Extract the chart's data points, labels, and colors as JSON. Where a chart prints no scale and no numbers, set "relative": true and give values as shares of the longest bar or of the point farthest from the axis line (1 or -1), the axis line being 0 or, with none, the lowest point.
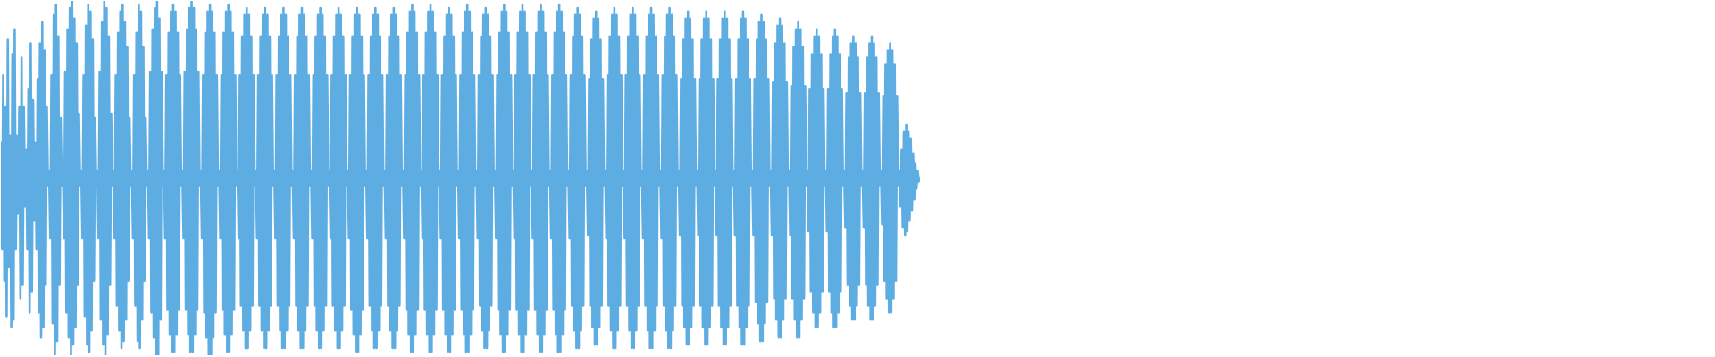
{
  "chart_data": {
    "type": "line",
    "relative": true,
    "categories": [
      null,
      null,
      null,
      null,
      null,
      null,
      null,
      null,
      null,
      null,
      null,
      null,
      null,
      null,
      null,
      null,
      null,
      null,
      null,
      null,
      null,
      null,
      null,
      null,
      null,
      null,
      null,
      null,
      null,
      null,
      null,
      null,
      null,
      null,
      null,
      null,
      null,
      null,
      null,
      null,
      null,
      null,
      null,
      null,
      null,
      null,
      null,
      null,
      null,
      null,
      null,
      null,
      null,
      null,
      null,
      null,
      null,
      null,
      null,
      null,
      null,
      null,
      null,
      null,
      null,
      null,
      null,
      null,
      null,
      null,
      null,
      null,
      null,
      null,
      null,
      null,
      null,
      null,
      null,
      null,
      null,
      null,
      null,
      null,
      null,
      null,
      null,
      null,
      null,
      null,
      null,
      null,
      null,
      null,
      null,
      null,
      null,
      null,
      null,
      null,
      null,
      null,
      null,
      null,
      null,
      null,
      null,
      null,
      null,
      null,
      null,
      null,
      null,
      null,
      null,
      null,
      null,
      null,
      null,
      null,
      null,
      null,
      null,
      null,
      null,
      null,
      null,
      null,
      null,
      null,
      null,
      null,
      null,
      null,
      null,
      null,
      null,
      null,
      null,
      null,
      null,
      null,
      null,
      null,
      null,
      null,
      null,
      null,
      null,
      null,
      null,
      null,
      null,
      null,
      null,
      null,
      null,
      null,
      null,
      null,
      null,
      null,
      null,
      null,
      null,
      null,
      null,
      null,
      null,
      null,
      null,
      null,
      null,
      null,
      null,
      null,
      null,
      null,
      null,
      null,
      null,
      null,
      null,
      null,
      null,
      null,
      null,
      null,
      null,
      null,
      null,
      null,
      null,
      null,
      null,
      null,
      null,
      null,
      null,
      null,
      null,
      null,
      null,
      null,
      null,
      null,
      null,
      null,
      null,
      null,
      null,
      null,
      null,
      null,
      null,
      null,
      null,
      null,
      null,
      null,
      null,
      null,
      null,
      null,
      null,
      null,
      null,
      null,
      null,
      null,
      null,
      null,
      null,
      null,
      null,
      null,
      null,
      null,
      null,
      null,
      null,
      null,
      null,
      null,
      null,
      null,
      null,
      null,
      null,
      null,
      null,
      null,
      null,
      null,
      null,
      null,
      null,
      null,
      null,
      null,
      null,
      null,
      null,
      null,
      null,
      null,
      null,
      null,
      null,
      null,
      null,
      null,
      null,
      null,
      null,
      null,
      null,
      null,
      null,
      null,
      null,
      null,
      null,
      null,
      null,
      null,
      null,
      null,
      null,
      null,
      null,
      null,
      null,
      null,
      null,
      null,
      null,
      null,
      null,
      null,
      null,
      null,
      null,
      null,
      null,
      null,
      null,
      null,
      null,
      null,
      null,
      null,
      null,
      null,
      null,
      null,
      null,
      null,
      null,
      null,
      null,
      null,
      null,
      null,
      null,
      null,
      null,
      null,
      null,
      null,
      null,
      null,
      null,
      null,
      null,
      null,
      null,
      null,
      null,
      null,
      null,
      null,
      null,
      null,
      null,
      null,
      null,
      null,
      null,
      null,
      null,
      null,
      null,
      null,
      null,
      null,
      null,
      null,
      null,
      null,
      null,
      null,
      null,
      null,
      null,
      null,
      null,
      null,
      null,
      null,
      null,
      null,
      null,
      null,
      null,
      null,
      null,
      null,
      null,
      null,
      null,
      null,
      null,
      null,
      null,
      null,
      null,
      null,
      null,
      null,
      null,
      null,
      null,
      null,
      null,
      null,
      null,
      null,
      null,
      null,
      null,
      null,
      null,
      null,
      null,
      null,
      null,
      null,
      null,
      null,
      null,
      null,
      null,
      null,
      null,
      null,
      null,
      null,
      null,
      null,
      null,
      null,
      null,
      null,
      null,
      null,
      null,
      null,
      null,
      null,
      null,
      null,
      null,
      null,
      null,
      null,
      null,
      null,
      null,
      null,
      null,
      null,
      null,
      null,
      null,
      null,
      null,
      null,
      null,
      null,
      null,
      null,
      null,
      null,
      null,
      null,
      null,
      null,
      null,
      null,
      null,
      null,
      null,
      null,
      null,
      null,
      null,
      null,
      null,
      null,
      null,
      null,
      null,
      null,
      null,
      null,
      null,
      null,
      null,
      null,
      null,
      null,
      null,
      null,
      null,
      null,
      null,
      null,
      null,
      null,
      null,
      null,
      null,
      null,
      null,
      null,
      null,
      null,
      null,
      null,
      null,
      null,
      null,
      null,
      null,
      null,
      null,
      null,
      null,
      null,
      null,
      null,
      null,
      null,
      null,
      null,
      null,
      null,
      null,
      null,
      null,
      null,
      null,
      null,
      null,
      null,
      null,
      null,
      null,
      null,
      null,
      null,
      null,
      null,
      null,
      null,
      null,
      null,
      null,
      null,
      null,
      null,
      null,
      null,
      null,
      null,
      null,
      null,
      null,
      null,
      null,
      null,
      null,
      null,
      null,
      null,
      null,
      null,
      null,
      null,
      null,
      null,
      null,
      null,
      null,
      null,
      null,
      null,
      null,
      null,
      null,
      null,
      null,
      null,
      null,
      null,
      null,
      null,
      null,
      null,
      null,
      null,
      null,
      null,
      null,
      null,
      null,
      null,
      null,
      null,
      null,
      null,
      null,
      null,
      null,
      null,
      null,
      null,
      null,
      null,
      null,
      null,
      null,
      null,
      null,
      null,
      null,
      null,
      null,
      null,
      null,
      null,
      null,
      null,
      null,
      null,
      null,
      null,
      null,
      null,
      null,
      null,
      null,
      null,
      null,
      null,
      null,
      null,
      null,
      null,
      null,
      null,
      null,
      null,
      null,
      null,
      null,
      null,
      null,
      null,
      null,
      null,
      null,
      null,
      null,
      null,
      null,
      null,
      null,
      null,
      null,
      null,
      null,
      null,
      null,
      null,
      null,
      null,
      null,
      null,
      null,
      null,
      null,
      null,
      null,
      null,
      null,
      null,
      null,
      null,
      null,
      null,
      null,
      null,
      null,
      null,
      null,
      null,
      null,
      null,
      null,
      null,
      null,
      null,
      null,
      null,
      null,
      null,
      null,
      null,
      null,
      null,
      null,
      null,
      null,
      null,
      null,
      null,
      null,
      null,
      null,
      null,
      null,
      null,
      null,
      null,
      null,
      null,
      null,
      null,
      null,
      null,
      null,
      null,
      null,
      null,
      null,
      null,
      null,
      null,
      null,
      null,
      null,
      null,
      null,
      null,
      null,
      null,
      null,
      null,
      null,
      null,
      null,
      null,
      null,
      null,
      null,
      null,
      null,
      null,
      null,
      null,
      null,
      null,
      null,
      null,
      null,
      null,
      null,
      null,
      null,
      null,
      null,
      null,
      null,
      null,
      null,
      null,
      null,
      null,
      null,
      null,
      null,
      null,
      null,
      null,
      null,
      null,
      null,
      null,
      null,
      null,
      null,
      null,
      null,
      null,
      null,
      null,
      null,
      null,
      null,
      null,
      null,
      null,
      null,
      null,
      null,
      null,
      null,
      null,
      null,
      null,
      null,
      null,
      null,
      null,
      null,
      null,
      null,
      null,
      null
    ],
    "series": [
      {
        "color": "#5dade2",
        "values": [
          0.6,
          0.3,
          0.79,
          0.21,
          0.7,
          0.11,
          0.89,
          0.25,
          0.62,
          0.08,
          0.85,
          0.1,
          0.92,
          0.3,
          0.62,
          0.4,
          0.7,
          0.16,
          0.84,
          0.2,
          0.7,
          0.42,
          0.58,
          0.3,
          0.75,
          0.12,
          0.88,
          0.18,
          0.72,
          0.38,
          0.6,
          0.3,
          0.78,
          0.12,
          0.88,
          0.05,
          0.94,
          0.08,
          0.86,
          0.2,
          0.7,
          0.48,
          0.52,
          0.33,
          0.79,
          0.09,
          0.96,
          0.0,
          0.99,
          0.04,
          0.9,
          0.2,
          0.67,
          0.48,
          0.52,
          0.33,
          0.8,
          0.12,
          0.92,
          0.05,
          0.98,
          0.0,
          1.0,
          0.03,
          0.95,
          0.08,
          0.88,
          0.2,
          0.68,
          0.48,
          0.52,
          0.33,
          0.79,
          0.11,
          0.93,
          0.03,
          0.99,
          0.01,
          0.97,
          0.07,
          0.89,
          0.21,
          0.67,
          0.48,
          0.52,
          0.33,
          0.8,
          0.1,
          0.94,
          0.03,
          1.0,
          0.0,
          0.98,
          0.06,
          0.9,
          0.2,
          0.68,
          0.48,
          0.52,
          0.33,
          0.79,
          0.14,
          0.91,
          0.07,
          0.97,
          0.02,
          0.99,
          0.04,
          0.94,
          0.1,
          0.87,
          0.21,
          0.67,
          0.48,
          0.52,
          0.33,
          0.79,
          0.14,
          0.91,
          0.04,
          0.99,
          0.02,
          0.97,
          0.1,
          0.87,
          0.21,
          0.67,
          0.48,
          0.52,
          0.33,
          0.8,
          0.12,
          0.92,
          0.05,
          0.98,
          0.0,
          1.0,
          0.0,
          0.95,
          0.1,
          0.8,
          0.48,
          0.52,
          0.33,
          0.79,
          0.13,
          0.91,
          0.06,
          0.97,
          0.01,
          0.99,
          0.01,
          0.97,
          0.06,
          0.91,
          0.13,
          0.79,
          0.48,
          0.52,
          0.33,
          0.8,
          0.13,
          0.92,
          0.06,
          0.98,
          0.01,
          1.0,
          0.01,
          0.98,
          0.06,
          0.92,
          0.13,
          0.8,
          0.48,
          0.52,
          0.33,
          0.79,
          0.12,
          0.91,
          0.05,
          0.97,
          0.0,
          0.99,
          0.0,
          0.97,
          0.05,
          0.91,
          0.12,
          0.79,
          0.48,
          0.52,
          0.33,
          0.79,
          0.13,
          0.91,
          0.06,
          0.97,
          0.01,
          0.99,
          0.01,
          0.97,
          0.06,
          0.91,
          0.13,
          0.79,
          0.48,
          0.52,
          0.33,
          0.79,
          0.14,
          0.9,
          0.07,
          0.96,
          0.02,
          0.98,
          0.02,
          0.96,
          0.07,
          0.9,
          0.14,
          0.79,
          0.48,
          0.52,
          0.33,
          0.79,
          0.14,
          0.9,
          0.07,
          0.96,
          0.02,
          0.98,
          0.02,
          0.96,
          0.07,
          0.9,
          0.14,
          0.79,
          0.48,
          0.52,
          0.33,
          0.79,
          0.14,
          0.9,
          0.07,
          0.96,
          0.02,
          0.98,
          0.02,
          0.96,
          0.07,
          0.9,
          0.14,
          0.79,
          0.48,
          0.52,
          0.33,
          0.79,
          0.14,
          0.9,
          0.07,
          0.96,
          0.02,
          0.98,
          0.02,
          0.96,
          0.07,
          0.9,
          0.14,
          0.79,
          0.48,
          0.52,
          0.33,
          0.79,
          0.14,
          0.9,
          0.07,
          0.96,
          0.02,
          0.98,
          0.02,
          0.96,
          0.07,
          0.9,
          0.14,
          0.79,
          0.48,
          0.52,
          0.33,
          0.79,
          0.14,
          0.9,
          0.07,
          0.96,
          0.02,
          0.98,
          0.02,
          0.96,
          0.07,
          0.9,
          0.14,
          0.79,
          0.48,
          0.52,
          0.33,
          0.79,
          0.13,
          0.9,
          0.06,
          0.96,
          0.01,
          0.98,
          0.01,
          0.96,
          0.06,
          0.9,
          0.13,
          0.79,
          0.48,
          0.52,
          0.33,
          0.79,
          0.14,
          0.9,
          0.07,
          0.96,
          0.02,
          0.98,
          0.02,
          0.96,
          0.07,
          0.9,
          0.14,
          0.79,
          0.48,
          0.52,
          0.33,
          0.79,
          0.14,
          0.9,
          0.07,
          0.96,
          0.02,
          0.98,
          0.02,
          0.96,
          0.07,
          0.9,
          0.14,
          0.79,
          0.48,
          0.52,
          0.33,
          0.79,
          0.13,
          0.91,
          0.06,
          0.97,
          0.01,
          0.99,
          0.01,
          0.97,
          0.06,
          0.91,
          0.13,
          0.79,
          0.48,
          0.52,
          0.33,
          0.79,
          0.13,
          0.91,
          0.06,
          0.97,
          0.01,
          0.99,
          0.01,
          0.97,
          0.06,
          0.91,
          0.13,
          0.79,
          0.48,
          0.52,
          0.33,
          0.79,
          0.13,
          0.9,
          0.06,
          0.96,
          0.01,
          0.98,
          0.01,
          0.96,
          0.06,
          0.9,
          0.13,
          0.79,
          0.48,
          0.52,
          0.33,
          0.79,
          0.13,
          0.91,
          0.06,
          0.97,
          0.01,
          0.99,
          0.01,
          0.97,
          0.06,
          0.91,
          0.13,
          0.79,
          0.48,
          0.52,
          0.33,
          0.79,
          0.14,
          0.9,
          0.07,
          0.96,
          0.02,
          0.98,
          0.02,
          0.96,
          0.07,
          0.9,
          0.14,
          0.79,
          0.48,
          0.52,
          0.33,
          0.79,
          0.13,
          0.91,
          0.06,
          0.97,
          0.01,
          0.99,
          0.01,
          0.97,
          0.06,
          0.91,
          0.13,
          0.79,
          0.48,
          0.52,
          0.33,
          0.79,
          0.13,
          0.91,
          0.06,
          0.97,
          0.01,
          0.99,
          0.01,
          0.97,
          0.06,
          0.91,
          0.13,
          0.79,
          0.48,
          0.52,
          0.33,
          0.79,
          0.13,
          0.91,
          0.06,
          0.97,
          0.01,
          0.99,
          0.01,
          0.97,
          0.06,
          0.91,
          0.13,
          0.79,
          0.48,
          0.52,
          0.33,
          0.79,
          0.13,
          0.91,
          0.06,
          0.97,
          0.01,
          0.99,
          0.01,
          0.97,
          0.06,
          0.91,
          0.13,
          0.79,
          0.48,
          0.52,
          0.33,
          0.79,
          0.14,
          0.9,
          0.07,
          0.96,
          0.02,
          0.98,
          0.02,
          0.96,
          0.07,
          0.9,
          0.14,
          0.79,
          0.48,
          0.52,
          0.34,
          0.78,
          0.14,
          0.89,
          0.08,
          0.95,
          0.03,
          0.97,
          0.03,
          0.95,
          0.08,
          0.89,
          0.14,
          0.78,
          0.48,
          0.52,
          0.33,
          0.79,
          0.14,
          0.9,
          0.07,
          0.96,
          0.02,
          0.98,
          0.02,
          0.96,
          0.07,
          0.9,
          0.14,
          0.79,
          0.48,
          0.52,
          0.33,
          0.79,
          0.14,
          0.9,
          0.07,
          0.96,
          0.02,
          0.98,
          0.02,
          0.96,
          0.07,
          0.9,
          0.14,
          0.79,
          0.48,
          0.52,
          0.33,
          0.79,
          0.14,
          0.9,
          0.07,
          0.96,
          0.02,
          0.98,
          0.02,
          0.96,
          0.07,
          0.9,
          0.14,
          0.79,
          0.48,
          0.52,
          0.33,
          0.79,
          0.14,
          0.9,
          0.07,
          0.96,
          0.02,
          0.98,
          0.02,
          0.96,
          0.07,
          0.9,
          0.14,
          0.79,
          0.48,
          0.52,
          0.34,
          0.78,
          0.14,
          0.89,
          0.08,
          0.95,
          0.03,
          0.97,
          0.03,
          0.95,
          0.08,
          0.89,
          0.14,
          0.78,
          0.48,
          0.52,
          0.34,
          0.78,
          0.14,
          0.89,
          0.08,
          0.95,
          0.03,
          0.97,
          0.03,
          0.95,
          0.08,
          0.89,
          0.14,
          0.78,
          0.48,
          0.52,
          0.34,
          0.78,
          0.14,
          0.89,
          0.08,
          0.95,
          0.03,
          0.97,
          0.03,
          0.95,
          0.08,
          0.89,
          0.14,
          0.78,
          0.48,
          0.52,
          0.34,
          0.78,
          0.14,
          0.89,
          0.08,
          0.95,
          0.03,
          0.97,
          0.03,
          0.95,
          0.08,
          0.89,
          0.14,
          0.78,
          0.48,
          0.52,
          0.34,
          0.78,
          0.15,
          0.89,
          0.09,
          0.94,
          0.04,
          0.96,
          0.04,
          0.94,
          0.09,
          0.89,
          0.15,
          0.78,
          0.48,
          0.52,
          0.34,
          0.77,
          0.16,
          0.88,
          0.1,
          0.93,
          0.05,
          0.95,
          0.05,
          0.93,
          0.1,
          0.88,
          0.16,
          0.77,
          0.48,
          0.52,
          0.34,
          0.76,
          0.16,
          0.87,
          0.1,
          0.92,
          0.05,
          0.94,
          0.05,
          0.92,
          0.1,
          0.87,
          0.16,
          0.76,
          0.48,
          0.52,
          0.35,
          0.75,
          0.18,
          0.85,
          0.12,
          0.9,
          0.08,
          0.92,
          0.08,
          0.9,
          0.12,
          0.85,
          0.18,
          0.75,
          0.48,
          0.52,
          0.35,
          0.75,
          0.18,
          0.85,
          0.12,
          0.9,
          0.08,
          0.92,
          0.08,
          0.9,
          0.12,
          0.85,
          0.18,
          0.75,
          0.48,
          0.52,
          0.36,
          0.74,
          0.2,
          0.84,
          0.14,
          0.88,
          0.1,
          0.9,
          0.1,
          0.88,
          0.14,
          0.84,
          0.2,
          0.74,
          0.48,
          0.52,
          0.36,
          0.74,
          0.2,
          0.84,
          0.14,
          0.88,
          0.1,
          0.9,
          0.1,
          0.88,
          0.14,
          0.84,
          0.2,
          0.74,
          0.48,
          0.52,
          0.37,
          0.73,
          0.21,
          0.82,
          0.16,
          0.86,
          0.12,
          0.88,
          0.12,
          0.86,
          0.16,
          0.82,
          0.21,
          0.73,
          0.48,
          0.52,
          0.42,
          0.58,
          0.36,
          0.63,
          0.34,
          0.65,
          0.35,
          0.63,
          0.38,
          0.61,
          0.41,
          0.57,
          0.44,
          0.54,
          0.47,
          0.52,
          0.49,
          0.5
        ]
      }
    ]
  }
}
